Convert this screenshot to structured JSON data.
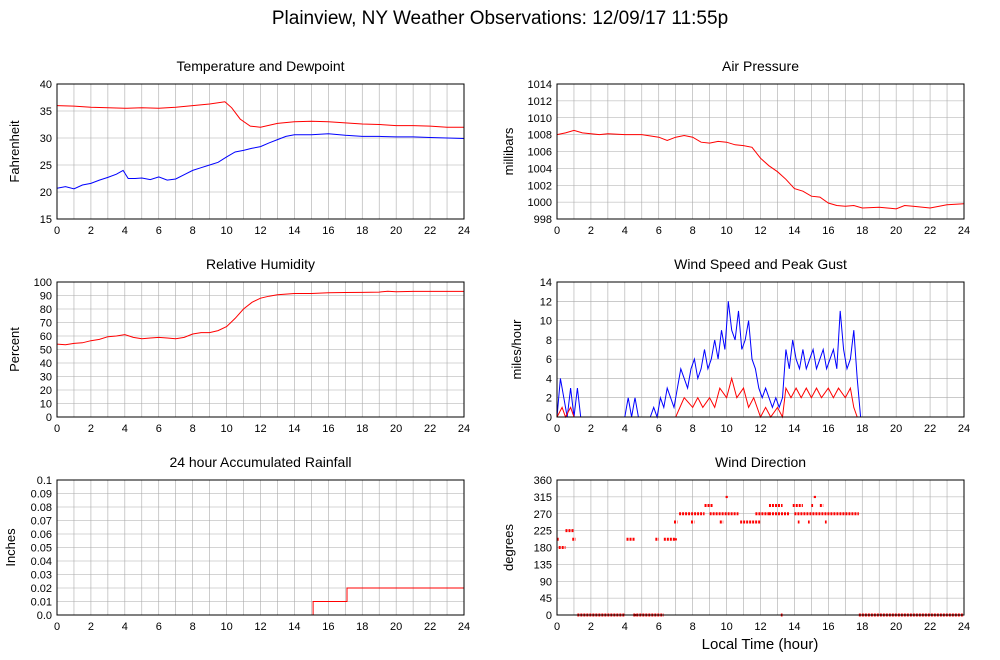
{
  "title": "Plainview, NY Weather Observations: 12/09/17 11:55p",
  "xlabel_shared": "Local Time (hour)",
  "colors": {
    "red": "#ff0000",
    "blue": "#0000ff",
    "grid": "#aaaaaa"
  },
  "chart_data": [
    {
      "id": "temp",
      "type": "line",
      "title": "Temperature and Dewpoint",
      "ylabel": "Fahrenheit",
      "xlim": [
        0,
        24
      ],
      "ylim": [
        15,
        40
      ],
      "xticks": [
        0,
        2,
        4,
        6,
        8,
        10,
        12,
        14,
        16,
        18,
        20,
        22,
        24
      ],
      "yticks": [
        15,
        20,
        25,
        30,
        35,
        40
      ],
      "grid": true,
      "series": [
        {
          "color": "#ff0000",
          "x": [
            0,
            1,
            2,
            3,
            4,
            5,
            6,
            7,
            8,
            9,
            9.9,
            10.3,
            10.8,
            11.4,
            12,
            13,
            14,
            15,
            16,
            17,
            18,
            19,
            20,
            21,
            22,
            23,
            24
          ],
          "y": [
            36,
            35.9,
            35.7,
            35.6,
            35.5,
            35.6,
            35.5,
            35.7,
            36,
            36.3,
            36.7,
            35.6,
            33.5,
            32.2,
            32,
            32.7,
            33,
            33.1,
            33,
            32.8,
            32.6,
            32.5,
            32.3,
            32.3,
            32.2,
            32,
            32
          ]
        },
        {
          "color": "#0000ff",
          "x": [
            0,
            0.5,
            1,
            1.5,
            2,
            2.5,
            3,
            3.5,
            3.9,
            4.2,
            4.6,
            5,
            5.5,
            6,
            6.5,
            7,
            7.5,
            8,
            8.5,
            9,
            9.5,
            10,
            10.5,
            11,
            11.5,
            12,
            12.5,
            13,
            13.5,
            14,
            15,
            16,
            17,
            18,
            19,
            20,
            21,
            22,
            23,
            24
          ],
          "y": [
            20.7,
            21,
            20.6,
            21.3,
            21.6,
            22.2,
            22.7,
            23.3,
            24,
            22.5,
            22.5,
            22.6,
            22.3,
            22.8,
            22.2,
            22.4,
            23.2,
            24,
            24.5,
            25,
            25.5,
            26.5,
            27.4,
            27.7,
            28.1,
            28.4,
            29.1,
            29.7,
            30.3,
            30.6,
            30.6,
            30.8,
            30.5,
            30.3,
            30.3,
            30.2,
            30.2,
            30.1,
            30,
            29.9
          ]
        }
      ]
    },
    {
      "id": "pressure",
      "type": "line",
      "title": "Air Pressure",
      "ylabel": "millibars",
      "xlim": [
        0,
        24
      ],
      "ylim": [
        998,
        1014
      ],
      "xticks": [
        0,
        2,
        4,
        6,
        8,
        10,
        12,
        14,
        16,
        18,
        20,
        22,
        24
      ],
      "yticks": [
        998,
        1000,
        1002,
        1004,
        1006,
        1008,
        1010,
        1012,
        1014
      ],
      "grid": true,
      "series": [
        {
          "color": "#ff0000",
          "x": [
            0,
            0.5,
            1,
            1.5,
            2,
            2.5,
            3,
            4,
            5,
            6,
            6.5,
            7,
            7.5,
            8,
            8.5,
            9,
            9.5,
            10,
            10.5,
            11,
            11.5,
            12,
            12.5,
            13,
            13.5,
            14,
            14.5,
            15,
            15.5,
            16,
            16.5,
            17,
            17.5,
            18,
            19,
            20,
            20.5,
            21,
            22,
            23,
            24
          ],
          "y": [
            1008,
            1008.2,
            1008.5,
            1008.2,
            1008.1,
            1008,
            1008.1,
            1008,
            1008,
            1007.7,
            1007.3,
            1007.7,
            1007.9,
            1007.7,
            1007.1,
            1007,
            1007.2,
            1007.1,
            1006.8,
            1006.7,
            1006.5,
            1005.2,
            1004.3,
            1003.6,
            1002.7,
            1001.6,
            1001.3,
            1000.7,
            1000.6,
            999.9,
            999.6,
            999.5,
            999.6,
            999.3,
            999.4,
            999.2,
            999.6,
            999.5,
            999.3,
            999.7,
            999.8
          ]
        }
      ]
    },
    {
      "id": "humidity",
      "type": "line",
      "title": "Relative Humidity",
      "ylabel": "Percent",
      "xlim": [
        0,
        24
      ],
      "ylim": [
        0,
        100
      ],
      "xticks": [
        0,
        2,
        4,
        6,
        8,
        10,
        12,
        14,
        16,
        18,
        20,
        22,
        24
      ],
      "yticks": [
        0,
        10,
        20,
        30,
        40,
        50,
        60,
        70,
        80,
        90,
        100
      ],
      "grid": true,
      "series": [
        {
          "color": "#ff0000",
          "x": [
            0,
            0.5,
            1,
            1.5,
            2,
            2.5,
            3,
            3.5,
            4,
            4.5,
            5,
            5.5,
            6,
            6.5,
            7,
            7.5,
            8,
            8.5,
            9,
            9.5,
            10,
            10.5,
            11,
            11.5,
            12,
            12.5,
            13,
            13.5,
            14,
            15,
            16,
            17,
            18,
            19,
            19.5,
            20,
            21,
            22,
            23,
            24
          ],
          "y": [
            54,
            53.5,
            54.5,
            55,
            56.5,
            57.5,
            59.5,
            60,
            61,
            59,
            58,
            58.5,
            59,
            58.5,
            58,
            59,
            61.5,
            62.5,
            62.5,
            64,
            67,
            73,
            80,
            85,
            88,
            89.5,
            90.5,
            91,
            91.5,
            91.5,
            92,
            92.2,
            92.3,
            92.5,
            93.2,
            92.8,
            93,
            93,
            93,
            93
          ]
        }
      ]
    },
    {
      "id": "wind",
      "type": "line",
      "title": "Wind Speed and Peak Gust",
      "ylabel": "miles/hour",
      "xlim": [
        0,
        24
      ],
      "ylim": [
        0,
        14
      ],
      "xticks": [
        0,
        2,
        4,
        6,
        8,
        10,
        12,
        14,
        16,
        18,
        20,
        22,
        24
      ],
      "yticks": [
        0,
        2,
        4,
        6,
        8,
        10,
        12,
        14
      ],
      "grid": true,
      "series": [
        {
          "color": "#0000ff",
          "x": [
            0,
            0.2,
            0.4,
            0.6,
            0.8,
            1,
            1.2,
            1.4,
            4,
            4.2,
            4.4,
            4.6,
            4.8,
            5.5,
            5.7,
            5.9,
            6.1,
            6.3,
            6.5,
            6.7,
            6.9,
            7.1,
            7.3,
            7.5,
            7.7,
            7.9,
            8.1,
            8.3,
            8.5,
            8.7,
            8.9,
            9.1,
            9.3,
            9.5,
            9.7,
            9.9,
            10.1,
            10.3,
            10.5,
            10.7,
            10.9,
            11.1,
            11.3,
            11.5,
            11.7,
            11.9,
            12.1,
            12.3,
            12.5,
            12.7,
            12.9,
            13.1,
            13.3,
            13.5,
            13.7,
            13.9,
            14.1,
            14.3,
            14.5,
            14.7,
            14.9,
            15.1,
            15.3,
            15.5,
            15.7,
            15.9,
            16.1,
            16.3,
            16.5,
            16.7,
            16.9,
            17.1,
            17.3,
            17.5,
            17.7,
            17.9,
            18.5,
            24
          ],
          "y": [
            0,
            4,
            2,
            0,
            3,
            0,
            3,
            0,
            0,
            2,
            0,
            2,
            0,
            0,
            1,
            0,
            2,
            1,
            3,
            2,
            1,
            3,
            5,
            4,
            3,
            5,
            6,
            4,
            5,
            7,
            5,
            6,
            8,
            6,
            9,
            7,
            12,
            9,
            8,
            11,
            7,
            8,
            10,
            6,
            5,
            3,
            2,
            3,
            2,
            1,
            2,
            1,
            2,
            7,
            5,
            8,
            6,
            5,
            7,
            5,
            6,
            7,
            5,
            6,
            7,
            5,
            6,
            7,
            5,
            11,
            7,
            5,
            6,
            9,
            4,
            0,
            0,
            0
          ]
        },
        {
          "color": "#ff0000",
          "x": [
            0,
            0.3,
            0.5,
            0.8,
            1,
            7,
            7.5,
            8,
            8.3,
            8.6,
            9,
            9.3,
            9.6,
            10,
            10.3,
            10.6,
            11,
            11.3,
            11.6,
            12,
            12.3,
            12.6,
            13,
            13.3,
            13.5,
            13.8,
            14.1,
            14.4,
            14.7,
            15,
            15.3,
            15.6,
            16,
            16.3,
            16.6,
            17,
            17.3,
            17.5,
            17.7,
            24
          ],
          "y": [
            0,
            1,
            0,
            1,
            0,
            0,
            2,
            1,
            2,
            1,
            2,
            1,
            3,
            2,
            4,
            2,
            3,
            1,
            2,
            0,
            1,
            0,
            1,
            0,
            3,
            2,
            3,
            2,
            3,
            2,
            3,
            2,
            3,
            2,
            3,
            2,
            3,
            1,
            0,
            0
          ]
        }
      ]
    },
    {
      "id": "rain",
      "type": "line",
      "title": "24 hour Accumulated Rainfall",
      "ylabel": "Inches",
      "xlim": [
        0,
        24
      ],
      "ylim": [
        0,
        0.1
      ],
      "xticks": [
        0,
        2,
        4,
        6,
        8,
        10,
        12,
        14,
        16,
        18,
        20,
        22,
        24
      ],
      "yticks": [
        "0.0",
        "0.01",
        "0.02",
        "0.03",
        "0.04",
        "0.05",
        "0.06",
        "0.07",
        "0.08",
        "0.09",
        "0.1"
      ],
      "grid": true,
      "series": [
        {
          "color": "#ff0000",
          "x": [
            0,
            15.1,
            15.1,
            17.1,
            17.1,
            24
          ],
          "y": [
            0,
            0,
            0.01,
            0.01,
            0.02,
            0.02
          ]
        }
      ]
    },
    {
      "id": "direction",
      "type": "scatter",
      "title": "Wind Direction",
      "ylabel": "degrees",
      "xlim": [
        0,
        24
      ],
      "ylim": [
        0,
        360
      ],
      "xticks": [
        0,
        2,
        4,
        6,
        8,
        10,
        12,
        14,
        16,
        18,
        20,
        22,
        24
      ],
      "yticks": [
        0,
        45,
        90,
        135,
        180,
        225,
        270,
        315,
        360
      ],
      "grid": true,
      "series": [
        {
          "color": "#ff0000",
          "segments": [
            {
              "y": 180,
              "x0": 0.1,
              "x1": 0.5
            },
            {
              "y": 202,
              "x0": 0.0,
              "x1": 0.1
            },
            {
              "y": 225,
              "x0": 0.5,
              "x1": 1.0
            },
            {
              "y": 202,
              "x0": 0.9,
              "x1": 1.1
            },
            {
              "y": 0,
              "x0": 1.2,
              "x1": 4.0
            },
            {
              "y": 202,
              "x0": 4.1,
              "x1": 4.6
            },
            {
              "y": 0,
              "x0": 4.5,
              "x1": 6.3
            },
            {
              "y": 202,
              "x0": 5.8,
              "x1": 6.0
            },
            {
              "y": 202,
              "x0": 6.3,
              "x1": 7.0
            },
            {
              "y": 248,
              "x0": 6.9,
              "x1": 7.1
            },
            {
              "y": 270,
              "x0": 7.2,
              "x1": 8.7
            },
            {
              "y": 248,
              "x0": 7.9,
              "x1": 8.1
            },
            {
              "y": 292,
              "x0": 8.7,
              "x1": 9.2
            },
            {
              "y": 270,
              "x0": 9.0,
              "x1": 10.7
            },
            {
              "y": 248,
              "x0": 9.6,
              "x1": 9.8
            },
            {
              "y": 248,
              "x0": 10.8,
              "x1": 12.0
            },
            {
              "y": 270,
              "x0": 11.7,
              "x1": 12.5
            },
            {
              "y": 292,
              "x0": 12.5,
              "x1": 13.3
            },
            {
              "y": 270,
              "x0": 12.5,
              "x1": 13.7
            },
            {
              "y": 0,
              "x0": 13.2,
              "x1": 13.3
            },
            {
              "y": 292,
              "x0": 13.9,
              "x1": 14.5
            },
            {
              "y": 270,
              "x0": 14.0,
              "x1": 17.8
            },
            {
              "y": 248,
              "x0": 14.2,
              "x1": 14.3
            },
            {
              "y": 248,
              "x0": 14.8,
              "x1": 14.9
            },
            {
              "y": 292,
              "x0": 15.0,
              "x1": 15.1
            },
            {
              "y": 292,
              "x0": 15.5,
              "x1": 15.7
            },
            {
              "y": 248,
              "x0": 15.8,
              "x1": 15.9
            },
            {
              "y": 0,
              "x0": 17.8,
              "x1": 24
            }
          ],
          "points": [
            [
              10.0,
              315
            ],
            [
              15.2,
              315
            ],
            [
              7.0,
              202
            ],
            [
              4.6,
              0
            ]
          ]
        }
      ]
    }
  ]
}
